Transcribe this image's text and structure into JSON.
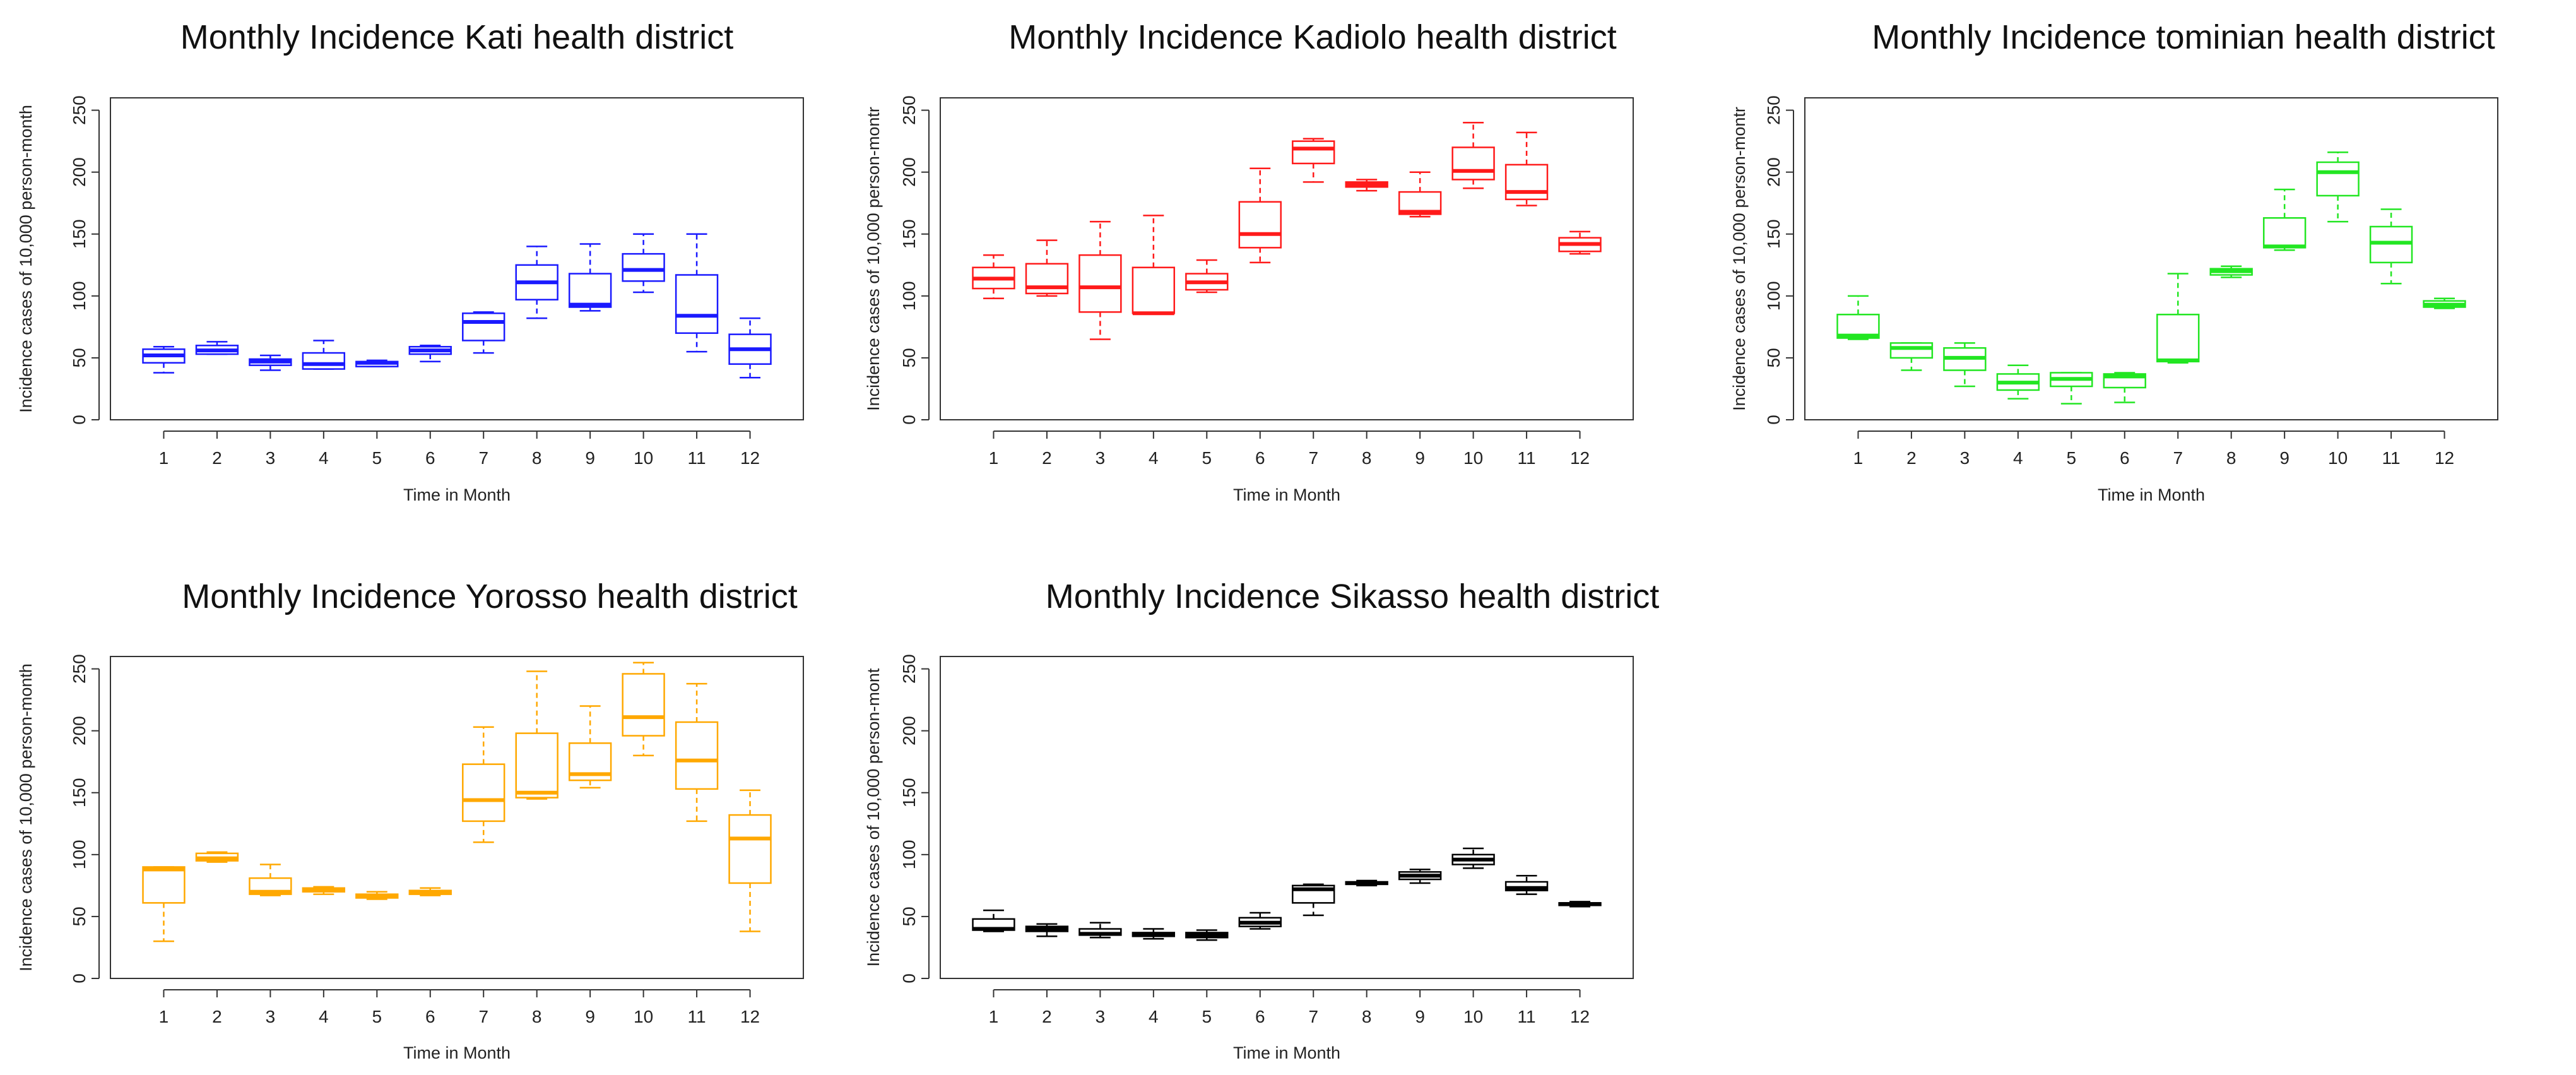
{
  "figure": {
    "description_hidden": false
  },
  "chart_data": [
    {
      "type": "boxplot",
      "title": "Monthly Incidence Kati health district",
      "xlabel": "Time in Month",
      "ylabel": "Incidence cases of 10,000 person-month",
      "color": "#1a1aff",
      "categories": [
        "1",
        "2",
        "3",
        "4",
        "5",
        "6",
        "7",
        "8",
        "9",
        "10",
        "11",
        "12"
      ],
      "yticks": [
        "0",
        "50",
        "100",
        "150",
        "200",
        "250"
      ],
      "ylim": [
        0,
        260
      ],
      "boxes": [
        {
          "min": 38,
          "q1": 46,
          "median": 52,
          "q3": 57,
          "max": 59
        },
        {
          "min": 53,
          "q1": 53,
          "median": 56,
          "q3": 60,
          "max": 63
        },
        {
          "min": 40,
          "q1": 44,
          "median": 47,
          "q3": 49,
          "max": 52
        },
        {
          "min": 41,
          "q1": 41,
          "median": 45,
          "q3": 54,
          "max": 64
        },
        {
          "min": 43,
          "q1": 43,
          "median": 46,
          "q3": 47,
          "max": 48
        },
        {
          "min": 47,
          "q1": 53,
          "median": 56,
          "q3": 59,
          "max": 60
        },
        {
          "min": 54,
          "q1": 64,
          "median": 79,
          "q3": 86,
          "max": 87
        },
        {
          "min": 82,
          "q1": 97,
          "median": 111,
          "q3": 125,
          "max": 140
        },
        {
          "min": 88,
          "q1": 91,
          "median": 93,
          "q3": 118,
          "max": 142
        },
        {
          "min": 103,
          "q1": 112,
          "median": 121,
          "q3": 134,
          "max": 150
        },
        {
          "min": 55,
          "q1": 70,
          "median": 84,
          "q3": 117,
          "max": 150
        },
        {
          "min": 34,
          "q1": 45,
          "median": 57,
          "q3": 69,
          "max": 82
        }
      ]
    },
    {
      "type": "boxplot",
      "title": "Monthly Incidence Kadiolo health district",
      "xlabel": "Time in Month",
      "ylabel": "Incidence cases of 10,000 person-montr",
      "color": "#ff1a1a",
      "categories": [
        "1",
        "2",
        "3",
        "4",
        "5",
        "6",
        "7",
        "8",
        "9",
        "10",
        "11",
        "12"
      ],
      "yticks": [
        "0",
        "50",
        "100",
        "150",
        "200",
        "250"
      ],
      "ylim": [
        0,
        260
      ],
      "boxes": [
        {
          "min": 98,
          "q1": 106,
          "median": 114,
          "q3": 123,
          "max": 133
        },
        {
          "min": 100,
          "q1": 102,
          "median": 107,
          "q3": 126,
          "max": 145
        },
        {
          "min": 65,
          "q1": 87,
          "median": 107,
          "q3": 133,
          "max": 160
        },
        {
          "min": 86,
          "q1": 86,
          "median": 86,
          "q3": 123,
          "max": 165
        },
        {
          "min": 103,
          "q1": 105,
          "median": 111,
          "q3": 118,
          "max": 129
        },
        {
          "min": 127,
          "q1": 139,
          "median": 150,
          "q3": 176,
          "max": 203
        },
        {
          "min": 192,
          "q1": 207,
          "median": 219,
          "q3": 225,
          "max": 227
        },
        {
          "min": 185,
          "q1": 188,
          "median": 190,
          "q3": 192,
          "max": 194
        },
        {
          "min": 164,
          "q1": 166,
          "median": 168,
          "q3": 184,
          "max": 200
        },
        {
          "min": 187,
          "q1": 194,
          "median": 201,
          "q3": 220,
          "max": 240
        },
        {
          "min": 173,
          "q1": 178,
          "median": 184,
          "q3": 206,
          "max": 232
        },
        {
          "min": 134,
          "q1": 136,
          "median": 142,
          "q3": 147,
          "max": 152
        }
      ]
    },
    {
      "type": "boxplot",
      "title": "Monthly Incidence tominian health district",
      "xlabel": "Time in Month",
      "ylabel": "Incidence cases of 10,000 person-montr",
      "color": "#22e622",
      "categories": [
        "1",
        "2",
        "3",
        "4",
        "5",
        "6",
        "7",
        "8",
        "9",
        "10",
        "11",
        "12"
      ],
      "yticks": [
        "0",
        "50",
        "100",
        "150",
        "200",
        "250"
      ],
      "ylim": [
        0,
        260
      ],
      "boxes": [
        {
          "min": 65,
          "q1": 66,
          "median": 68,
          "q3": 85,
          "max": 100
        },
        {
          "min": 40,
          "q1": 50,
          "median": 58,
          "q3": 62,
          "max": 62
        },
        {
          "min": 27,
          "q1": 40,
          "median": 50,
          "q3": 58,
          "max": 62
        },
        {
          "min": 17,
          "q1": 24,
          "median": 30,
          "q3": 37,
          "max": 44
        },
        {
          "min": 13,
          "q1": 27,
          "median": 33,
          "q3": 38,
          "max": 38
        },
        {
          "min": 14,
          "q1": 26,
          "median": 35,
          "q3": 37,
          "max": 38
        },
        {
          "min": 46,
          "q1": 47,
          "median": 48,
          "q3": 85,
          "max": 118
        },
        {
          "min": 115,
          "q1": 117,
          "median": 120,
          "q3": 122,
          "max": 124
        },
        {
          "min": 137,
          "q1": 139,
          "median": 140,
          "q3": 163,
          "max": 186
        },
        {
          "min": 160,
          "q1": 181,
          "median": 200,
          "q3": 208,
          "max": 216
        },
        {
          "min": 110,
          "q1": 127,
          "median": 143,
          "q3": 156,
          "max": 170
        },
        {
          "min": 90,
          "q1": 91,
          "median": 93,
          "q3": 96,
          "max": 98
        }
      ]
    },
    {
      "type": "boxplot",
      "title": "Monthly Incidence Yorosso health district",
      "xlabel": "Time in Month",
      "ylabel": "Incidence cases of 10,000 person-month",
      "color": "#ffa800",
      "categories": [
        "1",
        "2",
        "3",
        "4",
        "5",
        "6",
        "7",
        "8",
        "9",
        "10",
        "11",
        "12"
      ],
      "yticks": [
        "0",
        "50",
        "100",
        "150",
        "200",
        "250"
      ],
      "ylim": [
        0,
        260
      ],
      "boxes": [
        {
          "min": 30,
          "q1": 61,
          "median": 88,
          "q3": 90,
          "max": 90
        },
        {
          "min": 94,
          "q1": 95,
          "median": 97,
          "q3": 101,
          "max": 102
        },
        {
          "min": 67,
          "q1": 68,
          "median": 70,
          "q3": 81,
          "max": 92
        },
        {
          "min": 68,
          "q1": 70,
          "median": 71,
          "q3": 73,
          "max": 74
        },
        {
          "min": 64,
          "q1": 65,
          "median": 66,
          "q3": 68,
          "max": 70
        },
        {
          "min": 67,
          "q1": 68,
          "median": 69,
          "q3": 71,
          "max": 73
        },
        {
          "min": 110,
          "q1": 127,
          "median": 144,
          "q3": 173,
          "max": 203
        },
        {
          "min": 145,
          "q1": 146,
          "median": 150,
          "q3": 198,
          "max": 248
        },
        {
          "min": 154,
          "q1": 160,
          "median": 165,
          "q3": 190,
          "max": 220
        },
        {
          "min": 180,
          "q1": 196,
          "median": 211,
          "q3": 246,
          "max": 255
        },
        {
          "min": 127,
          "q1": 153,
          "median": 176,
          "q3": 207,
          "max": 238
        },
        {
          "min": 38,
          "q1": 77,
          "median": 113,
          "q3": 132,
          "max": 152
        }
      ]
    },
    {
      "type": "boxplot",
      "title": "Monthly Incidence Sikasso health district",
      "xlabel": "Time in Month",
      "ylabel": "Incidence cases of 10,000 person-mont",
      "color": "#000000",
      "categories": [
        "1",
        "2",
        "3",
        "4",
        "5",
        "6",
        "7",
        "8",
        "9",
        "10",
        "11",
        "12"
      ],
      "yticks": [
        "0",
        "50",
        "100",
        "150",
        "200",
        "250"
      ],
      "ylim": [
        0,
        260
      ],
      "boxes": [
        {
          "min": 38,
          "q1": 39,
          "median": 40,
          "q3": 48,
          "max": 55
        },
        {
          "min": 34,
          "q1": 38,
          "median": 40,
          "q3": 42,
          "max": 44
        },
        {
          "min": 33,
          "q1": 35,
          "median": 36,
          "q3": 40,
          "max": 45
        },
        {
          "min": 32,
          "q1": 34,
          "median": 35,
          "q3": 37,
          "max": 40
        },
        {
          "min": 31,
          "q1": 33,
          "median": 35,
          "q3": 37,
          "max": 39
        },
        {
          "min": 40,
          "q1": 42,
          "median": 45,
          "q3": 49,
          "max": 53
        },
        {
          "min": 51,
          "q1": 61,
          "median": 72,
          "q3": 75,
          "max": 76
        },
        {
          "min": 75,
          "q1": 76,
          "median": 77,
          "q3": 78,
          "max": 79
        },
        {
          "min": 77,
          "q1": 80,
          "median": 83,
          "q3": 86,
          "max": 88
        },
        {
          "min": 89,
          "q1": 92,
          "median": 96,
          "q3": 100,
          "max": 105
        },
        {
          "min": 68,
          "q1": 71,
          "median": 73,
          "q3": 78,
          "max": 83
        },
        {
          "min": 58,
          "q1": 59,
          "median": 60,
          "q3": 61,
          "max": 62
        }
      ]
    }
  ]
}
